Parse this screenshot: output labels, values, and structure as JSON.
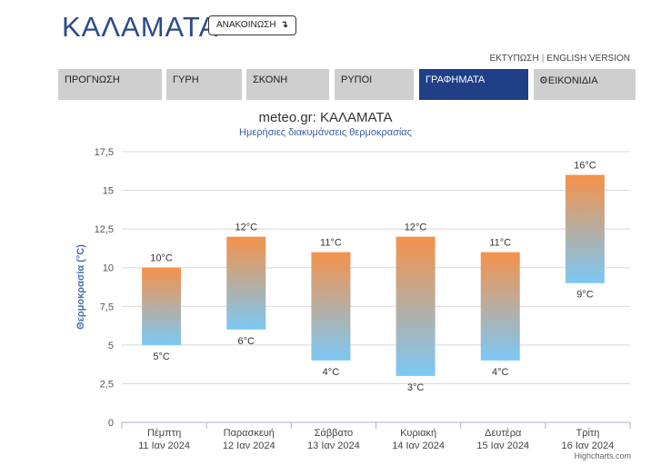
{
  "header": {
    "city": "ΚΑΛΑΜΑΤΑ",
    "announce_label": "ΑΝΑΚΟΙΝΩΣΗ",
    "announce_icon": "↴",
    "print_link": "ΕΚΤΥΠΩΣΗ",
    "link_separator": "|",
    "english_link": "ENGLISH VERSION"
  },
  "tabs": [
    {
      "label": "ΠΡΟΓΝΩΣΗ",
      "active": false
    },
    {
      "label": "ΓΥΡΗ",
      "active": false
    },
    {
      "label": "ΣΚΟΝΗ",
      "active": false
    },
    {
      "label": "ΡΥΠΟΙ",
      "active": false
    },
    {
      "label": "ΓΡΑΦΗΜΑΤΑ",
      "active": true
    },
    {
      "label": "ΕΙΚΟΝΙΔΙΑ",
      "active": false,
      "icon": "gear-icon"
    }
  ],
  "colors": {
    "brand": "#2c4a8c",
    "active_tab": "#1f3f87",
    "bar_top": "#f4924a",
    "bar_bottom": "#7cc8f5",
    "axis_title": "#4a6fb0"
  },
  "chart_data": {
    "type": "bar",
    "subtype": "columnrange",
    "title": "meteo.gr: ΚΑΛΑΜΑΤΑ",
    "subtitle": "Ημερήσιες διακυμάνσεις θερμοκρασίας",
    "ylabel": "Θερμοκρασία (°C)",
    "xlabel": "",
    "ylim": [
      0,
      17.5
    ],
    "yticks": [
      "0",
      "2,5",
      "5",
      "7,5",
      "10",
      "12,5",
      "15",
      "17,5"
    ],
    "grid": true,
    "categories": [
      {
        "day": "Πέμπτη",
        "date": "11 Ιαν 2024"
      },
      {
        "day": "Παρασκευή",
        "date": "12 Ιαν 2024"
      },
      {
        "day": "Σάββατο",
        "date": "13 Ιαν 2024"
      },
      {
        "day": "Κυριακή",
        "date": "14 Ιαν 2024"
      },
      {
        "day": "Δευτέρα",
        "date": "15 Ιαν 2024"
      },
      {
        "day": "Τρίτη",
        "date": "16 Ιαν 2024"
      }
    ],
    "low": [
      5,
      6,
      4,
      3,
      4,
      9
    ],
    "high": [
      10,
      12,
      11,
      12,
      11,
      16
    ],
    "unit": "°C"
  },
  "credits": "Highcharts.com"
}
